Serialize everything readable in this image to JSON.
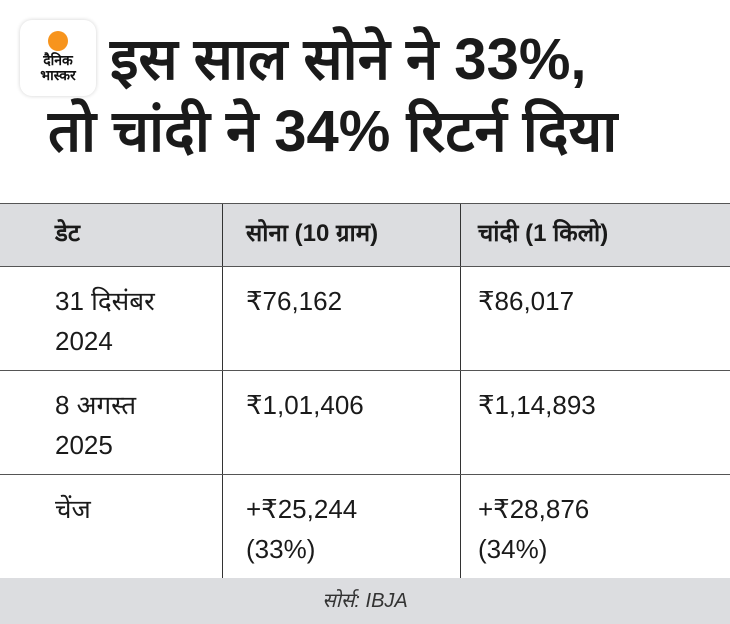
{
  "logo": {
    "line1": "दैनिक",
    "line2": "भास्कर",
    "accent": "#f7941d"
  },
  "title": {
    "line1": "इस साल सोने ने 33%,",
    "line2": "तो चांदी ने 34% रिटर्न दिया"
  },
  "table": {
    "headers": [
      "डेट",
      "सोना (10 ग्राम)",
      "चांदी (1 किलो)"
    ],
    "rows": [
      {
        "date": "31 दिसंबर 2024",
        "gold": "₹76,162",
        "silver": "₹86,017"
      },
      {
        "date": "8 अगस्त 2025",
        "gold": "₹1,01,406",
        "silver": "₹1,14,893"
      },
      {
        "date": "चेंज",
        "gold": "+₹25,244 (33%)",
        "silver": "+₹28,876 (34%)"
      }
    ]
  },
  "footer": {
    "source": "सोर्स: IBJA"
  }
}
